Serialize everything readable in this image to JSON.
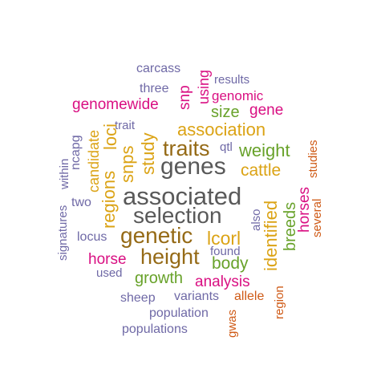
{
  "palette": {
    "grey": "#595959",
    "brown": "#956a16",
    "gold": "#dba315",
    "green": "#68a22a",
    "pink": "#d90f82",
    "purple": "#6f69a6",
    "orange": "#cf5a16"
  },
  "words": {
    "associated": "associated",
    "selection": "selection",
    "genes": "genes",
    "genetic": "genetic",
    "height": "height",
    "traits": "traits",
    "lcorl": "lcorl",
    "association": "association",
    "weight": "weight",
    "cattle": "cattle",
    "genomewide": "genomewide",
    "loci": "loci",
    "regions": "regions",
    "snps": "snps",
    "study": "study",
    "identified": "identified",
    "breeds": "breeds",
    "horses": "horses",
    "body": "body",
    "analysis": "analysis",
    "horse": "horse",
    "growth": "growth",
    "size": "size",
    "gene": "gene",
    "genomic": "genomic",
    "snp": "snp",
    "using": "using",
    "candidate": "candidate",
    "carcass": "carcass",
    "three": "three",
    "results": "results",
    "trait": "trait",
    "qtl": "qtl",
    "ncapg": "ncapg",
    "within": "within",
    "signatures": "signatures",
    "two": "two",
    "locus": "locus",
    "used": "used",
    "found": "found",
    "also": "also",
    "studies": "studies",
    "several": "several",
    "region": "region",
    "allele": "allele",
    "gwas": "gwas",
    "variants": "variants",
    "sheep": "sheep",
    "population": "population",
    "populations": "populations"
  }
}
